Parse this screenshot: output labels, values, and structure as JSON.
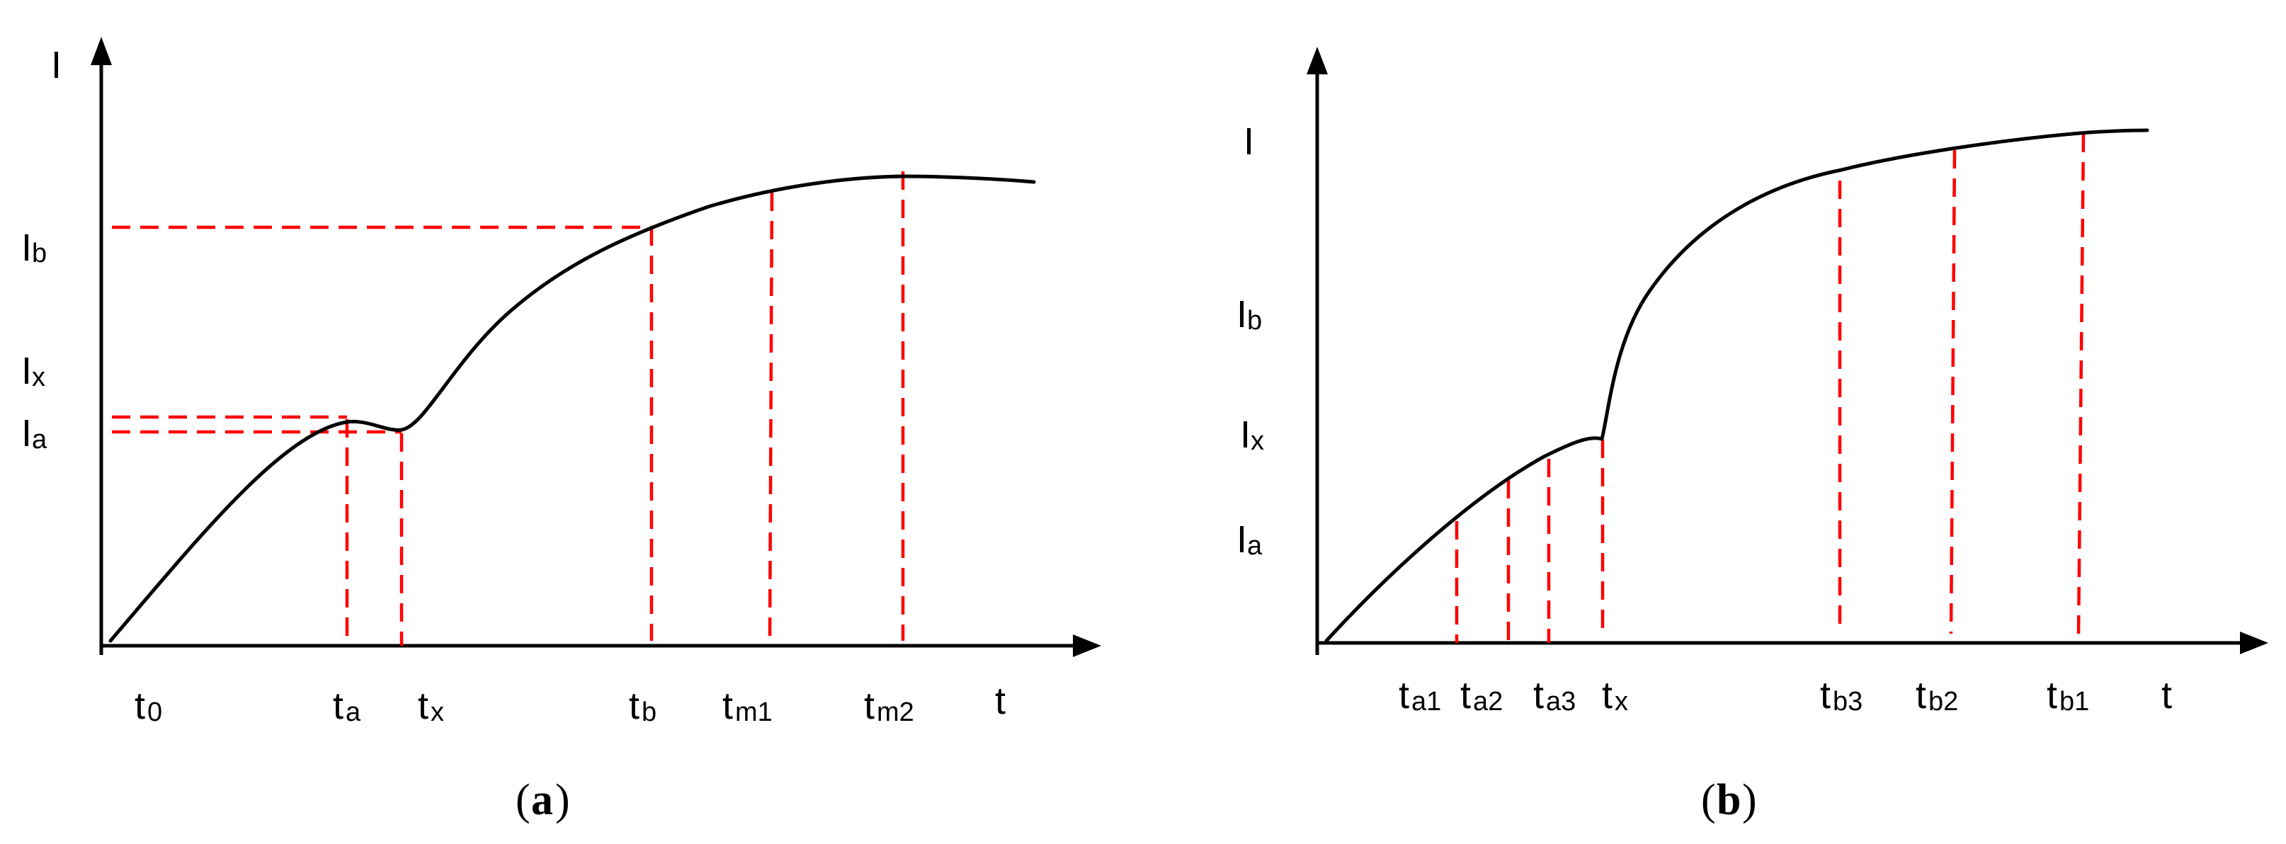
{
  "panel_a": {
    "caption": {
      "open": "(",
      "letter": "a",
      "close": ")"
    },
    "y_axis_label": "I",
    "x_axis_label": "t",
    "y_labels": [
      {
        "main": "I",
        "sub": "b"
      },
      {
        "main": "I",
        "sub": "x"
      },
      {
        "main": "I",
        "sub": "a"
      }
    ],
    "x_labels": [
      {
        "main": "t",
        "sub": "0"
      },
      {
        "main": "t",
        "sub": "a"
      },
      {
        "main": "t",
        "sub": "x"
      },
      {
        "main": "t",
        "sub": "b"
      },
      {
        "main": "t",
        "sub": "m1"
      },
      {
        "main": "t",
        "sub": "m2"
      }
    ]
  },
  "panel_b": {
    "caption": {
      "open": "(",
      "letter": "b",
      "close": ")"
    },
    "y_axis_label": "I",
    "x_axis_label": "t",
    "y_labels": [
      {
        "main": "I",
        "sub": "b"
      },
      {
        "main": "I",
        "sub": "x"
      },
      {
        "main": "I",
        "sub": "a"
      }
    ],
    "x_labels": [
      {
        "main": "t",
        "sub": "a1"
      },
      {
        "main": "t",
        "sub": "a2"
      },
      {
        "main": "t",
        "sub": "a3"
      },
      {
        "main": "t",
        "sub": "x"
      },
      {
        "main": "t",
        "sub": "b3"
      },
      {
        "main": "t",
        "sub": "b2"
      },
      {
        "main": "t",
        "sub": "b1"
      }
    ]
  },
  "colors": {
    "curve": "#000000",
    "guide_lines": "#ff0000",
    "axes": "#000000"
  }
}
